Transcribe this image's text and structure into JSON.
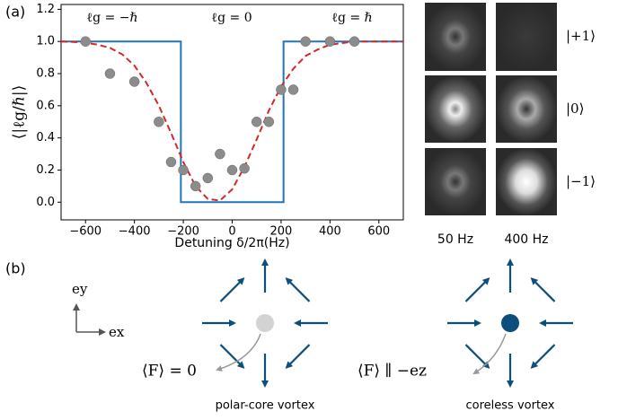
{
  "panel_labels": [
    "(a)",
    "(b)"
  ],
  "chart_data": {
    "type": "line",
    "xlabel": "Detuning δ/2π(Hz)",
    "ylabel": "⟨|ℓg/ℏ|⟩",
    "annotations": [
      "ℓg = −ℏ",
      "ℓg = 0",
      "ℓg = ℏ"
    ],
    "xlim": [
      -700,
      700
    ],
    "ylim": [
      -0.11,
      1.23
    ],
    "xticks": [
      {
        "value": -600,
        "label": "−600"
      },
      {
        "value": -400,
        "label": "−400"
      },
      {
        "value": -200,
        "label": "−200"
      },
      0,
      200,
      400,
      600
    ],
    "yticks": [
      {
        "value": 0,
        "label": "0.0"
      },
      {
        "value": 0.2,
        "label": "0.2"
      },
      {
        "value": 0.4,
        "label": "0.4"
      },
      {
        "value": 0.6,
        "label": "0.6"
      },
      {
        "value": 0.8,
        "label": "0.8"
      },
      {
        "value": 1,
        "label": "1.0"
      },
      {
        "value": 1.2,
        "label": "1.2"
      }
    ],
    "series": [
      {
        "type": "line",
        "color": "#1f77b4",
        "x": [
          -700,
          -210,
          -210,
          210,
          210,
          700
        ],
        "values": [
          1,
          1,
          0,
          0,
          1,
          1
        ]
      },
      {
        "type": "line",
        "color": "#d62728",
        "dashed": true,
        "x": [
          -700,
          -650,
          -600,
          -550,
          -500,
          -450,
          -400,
          -350,
          -300,
          -250,
          -200,
          -150,
          -100,
          -50,
          0,
          50,
          100,
          150,
          200,
          250,
          300,
          350,
          400,
          450,
          500,
          600,
          700
        ],
        "values": [
          1,
          0.997,
          0.992,
          0.98,
          0.96,
          0.92,
          0.85,
          0.74,
          0.6,
          0.43,
          0.25,
          0.1,
          0.02,
          0.01,
          0.08,
          0.22,
          0.39,
          0.57,
          0.72,
          0.83,
          0.91,
          0.95,
          0.98,
          0.99,
          1,
          1,
          1
        ]
      },
      {
        "type": "scatter",
        "color": "#8c8c8c",
        "x": [
          -600,
          -500,
          -400,
          -300,
          -250,
          -200,
          -150,
          -100,
          -50,
          0,
          50,
          100,
          150,
          200,
          250,
          300,
          400,
          500
        ],
        "values": [
          1,
          0.8,
          0.75,
          0.5,
          0.25,
          0.2,
          0.1,
          0.15,
          0.3,
          0.2,
          0.21,
          0.5,
          0.5,
          0.7,
          0.7,
          1,
          1,
          1
        ]
      }
    ]
  },
  "images": {
    "state_labels": [
      "|+1⟩",
      "|0⟩",
      "|−1⟩"
    ],
    "column_labels": [
      "50 Hz",
      "400 Hz"
    ]
  },
  "diagram": {
    "axis_labels": [
      "ey",
      "ex"
    ],
    "vortices": [
      {
        "annotation": "⟨F⟩ = 0",
        "caption": "polar-core vortex"
      },
      {
        "annotation": "⟨F⟩ ∥ −ez",
        "caption": "coreless vortex"
      }
    ]
  }
}
